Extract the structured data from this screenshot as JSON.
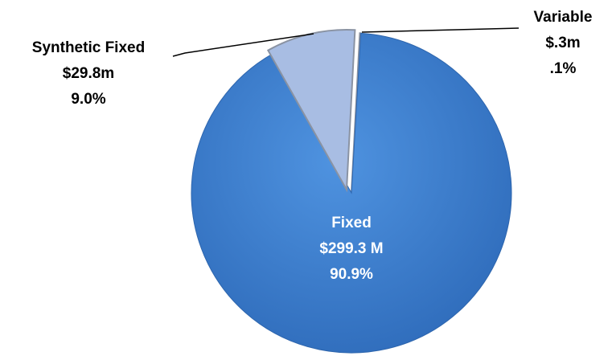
{
  "chart_data": {
    "type": "pie",
    "categories": [
      "Fixed",
      "Synthetic Fixed",
      "Variable"
    ],
    "values": [
      90.9,
      9.0,
      0.1
    ],
    "value_labels": [
      "90.9%",
      "9.0%",
      ".1%"
    ],
    "amount_labels": [
      "$299.3 M",
      "$29.8m",
      "$.3m"
    ],
    "colors": [
      "#3b7dd0",
      "#a8bde3",
      "#c6d4ee"
    ]
  }
}
